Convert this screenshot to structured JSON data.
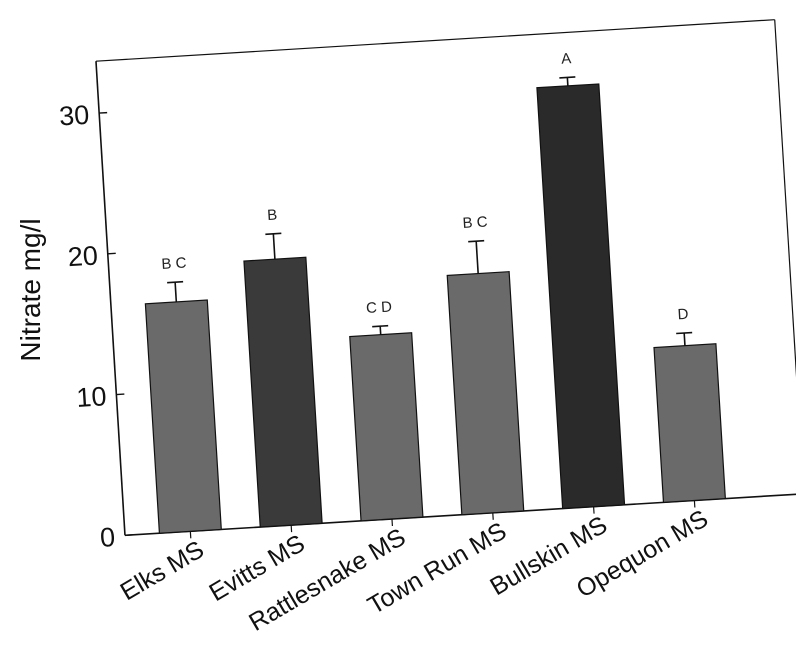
{
  "chart_data": {
    "type": "bar",
    "title": "",
    "xlabel": "",
    "ylabel": "Nitrate mg/l",
    "ylim": [
      0,
      30
    ],
    "yticks": [
      0,
      10,
      20,
      30
    ],
    "categories": [
      "Elks MS",
      "Evitts MS",
      "Rattlesnake MS",
      "Town Run MS",
      "Bullskin MS",
      "Opequon MS"
    ],
    "values": [
      16.3,
      18.9,
      13.1,
      17.0,
      29.9,
      11.0
    ],
    "error_upper": [
      1.4,
      1.8,
      0.6,
      2.3,
      0.6,
      0.9
    ],
    "significance_letters": [
      "B C",
      "B",
      "C D",
      "B C",
      "A",
      "D"
    ],
    "bar_colors": [
      "#6a6a6a",
      "#3a3a3a",
      "#6a6a6a",
      "#6a6a6a",
      "#2a2a2a",
      "#6a6a6a"
    ],
    "grid": false,
    "legend": "none"
  }
}
